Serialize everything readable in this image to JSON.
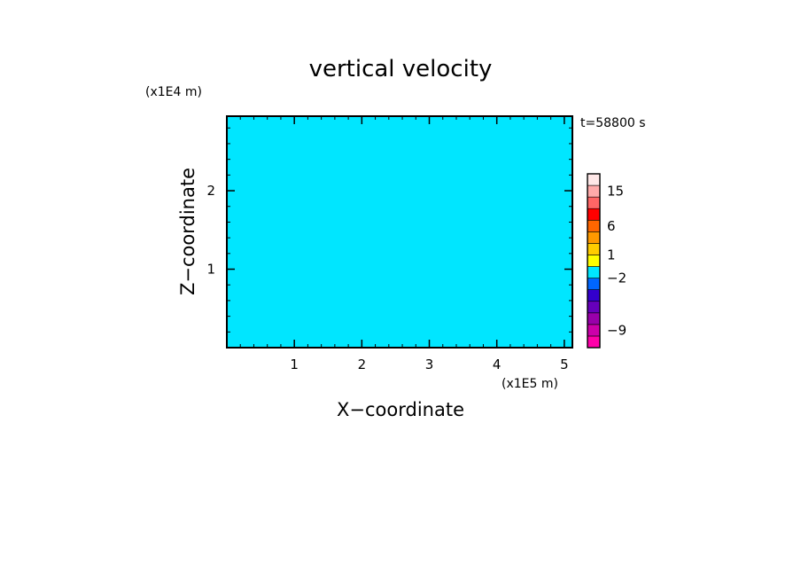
{
  "chart_data": {
    "type": "heatmap",
    "title": "vertical velocity",
    "xlabel": "X−coordinate",
    "ylabel": "Z−coordinate",
    "x_scale_note": "(x1E5 m)",
    "y_scale_note": "(x1E4 m)",
    "time_label": "t=58800 s",
    "xlim": [
      0,
      5.12
    ],
    "ylim": [
      0,
      2.95
    ],
    "x_ticks": [
      {
        "value": 1,
        "label": "1"
      },
      {
        "value": 2,
        "label": "2"
      },
      {
        "value": 3,
        "label": "3"
      },
      {
        "value": 4,
        "label": "4"
      },
      {
        "value": 5,
        "label": "5"
      }
    ],
    "y_ticks": [
      {
        "value": 1,
        "label": "1"
      },
      {
        "value": 2,
        "label": "2"
      }
    ],
    "field_colors": {
      "positive": "#ffff00",
      "negative": "#00e6ff"
    },
    "colorbar": {
      "bins": [
        {
          "color": "#ff00aa"
        },
        {
          "color": "#cc00aa"
        },
        {
          "color": "#9900aa"
        },
        {
          "color": "#6600bb"
        },
        {
          "color": "#3300cc"
        },
        {
          "color": "#0066ff"
        },
        {
          "color": "#00e6ff"
        },
        {
          "color": "#ffff00"
        },
        {
          "color": "#ffcc00"
        },
        {
          "color": "#ff9900"
        },
        {
          "color": "#ff6600"
        },
        {
          "color": "#ff0000"
        },
        {
          "color": "#ff6666"
        },
        {
          "color": "#ffaaaa"
        },
        {
          "color": "#ffe8e8"
        }
      ],
      "labels": [
        {
          "text": "15",
          "bin": 13
        },
        {
          "text": "6",
          "bin": 10
        },
        {
          "text": "1",
          "bin": 7.5
        },
        {
          "text": "−2",
          "bin": 5.5
        },
        {
          "text": "−9",
          "bin": 1
        }
      ]
    }
  }
}
